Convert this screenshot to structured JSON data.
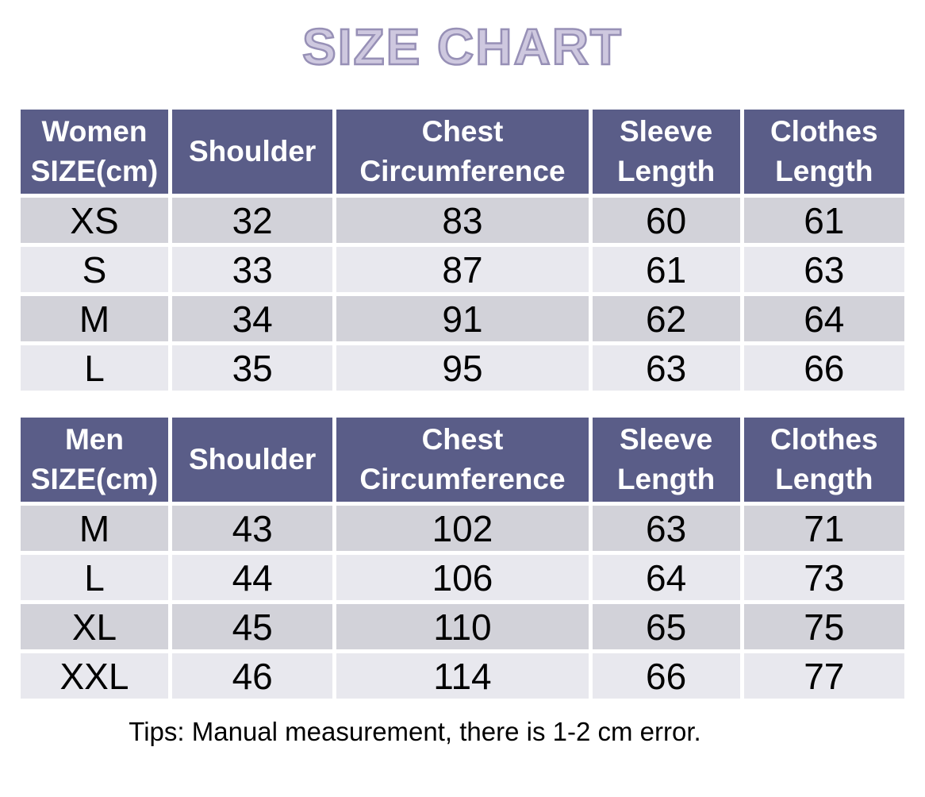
{
  "title": "SIZE CHART",
  "tips": "Tips: Manual measurement, there is 1-2 cm error.",
  "colors": {
    "title_fill": "#cec8df",
    "title_stroke": "#9790b6",
    "header_bg": "#5a5d88",
    "header_text": "#ffffff",
    "row_dark": "#d2d2d9",
    "row_light": "#e8e8ee"
  },
  "chart_data": [
    {
      "type": "table",
      "name": "women-sizes",
      "headers": [
        "Women\nSIZE(cm)",
        "Shoulder",
        "Chest\nCircumference",
        "Sleeve\nLength",
        "Clothes\nLength"
      ],
      "rows": [
        [
          "XS",
          "32",
          "83",
          "60",
          "61"
        ],
        [
          "S",
          "33",
          "87",
          "61",
          "63"
        ],
        [
          "M",
          "34",
          "91",
          "62",
          "64"
        ],
        [
          "L",
          "35",
          "95",
          "63",
          "66"
        ]
      ]
    },
    {
      "type": "table",
      "name": "men-sizes",
      "headers": [
        "Men\nSIZE(cm)",
        "Shoulder",
        "Chest\nCircumference",
        "Sleeve\nLength",
        "Clothes\nLength"
      ],
      "rows": [
        [
          "M",
          "43",
          "102",
          "63",
          "71"
        ],
        [
          "L",
          "44",
          "106",
          "64",
          "73"
        ],
        [
          "XL",
          "45",
          "110",
          "65",
          "75"
        ],
        [
          "XXL",
          "46",
          "114",
          "66",
          "77"
        ]
      ]
    }
  ]
}
